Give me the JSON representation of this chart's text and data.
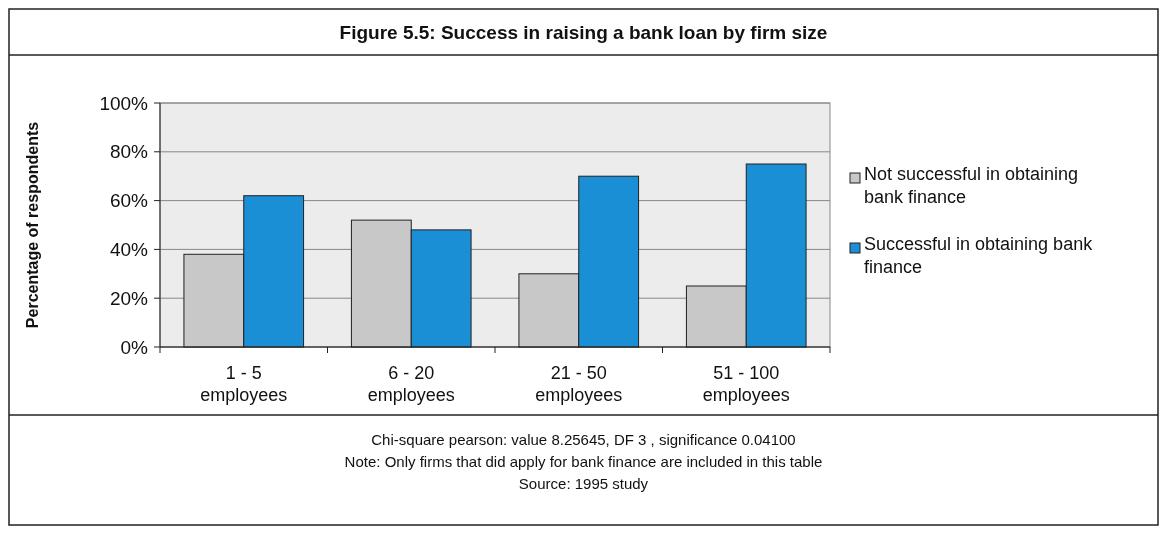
{
  "chart_data": {
    "type": "bar",
    "title": "Figure 5.5: Success in raising a bank loan by firm size",
    "ylabel": "Percentage of respondents",
    "categories": [
      "1 - 5 employees",
      "6 - 20 employees",
      "21 - 50 employees",
      "51 - 100 employees"
    ],
    "series": [
      {
        "name": "Not successful in obtaining bank finance",
        "color": "#c8c8c8",
        "values": [
          38,
          52,
          30,
          25
        ]
      },
      {
        "name": "Successful in obtaining bank finance",
        "color": "#1b8fd6",
        "values": [
          62,
          48,
          70,
          75
        ]
      }
    ],
    "ylim": [
      0,
      100
    ],
    "yticks": [
      {
        "value": 0,
        "label": "0%"
      },
      {
        "value": 20,
        "label": "20%"
      },
      {
        "value": 40,
        "label": "40%"
      },
      {
        "value": 60,
        "label": "60%"
      },
      {
        "value": 80,
        "label": "80%"
      },
      {
        "value": 100,
        "label": "100%"
      }
    ],
    "grid": "y",
    "legend": "right",
    "annotations": [
      "Chi-square pearson: value 8.25645, DF 3 , significance 0.04100",
      "Note: Only firms that did apply for bank finance are included in this table",
      "Source: 1995 study"
    ]
  }
}
